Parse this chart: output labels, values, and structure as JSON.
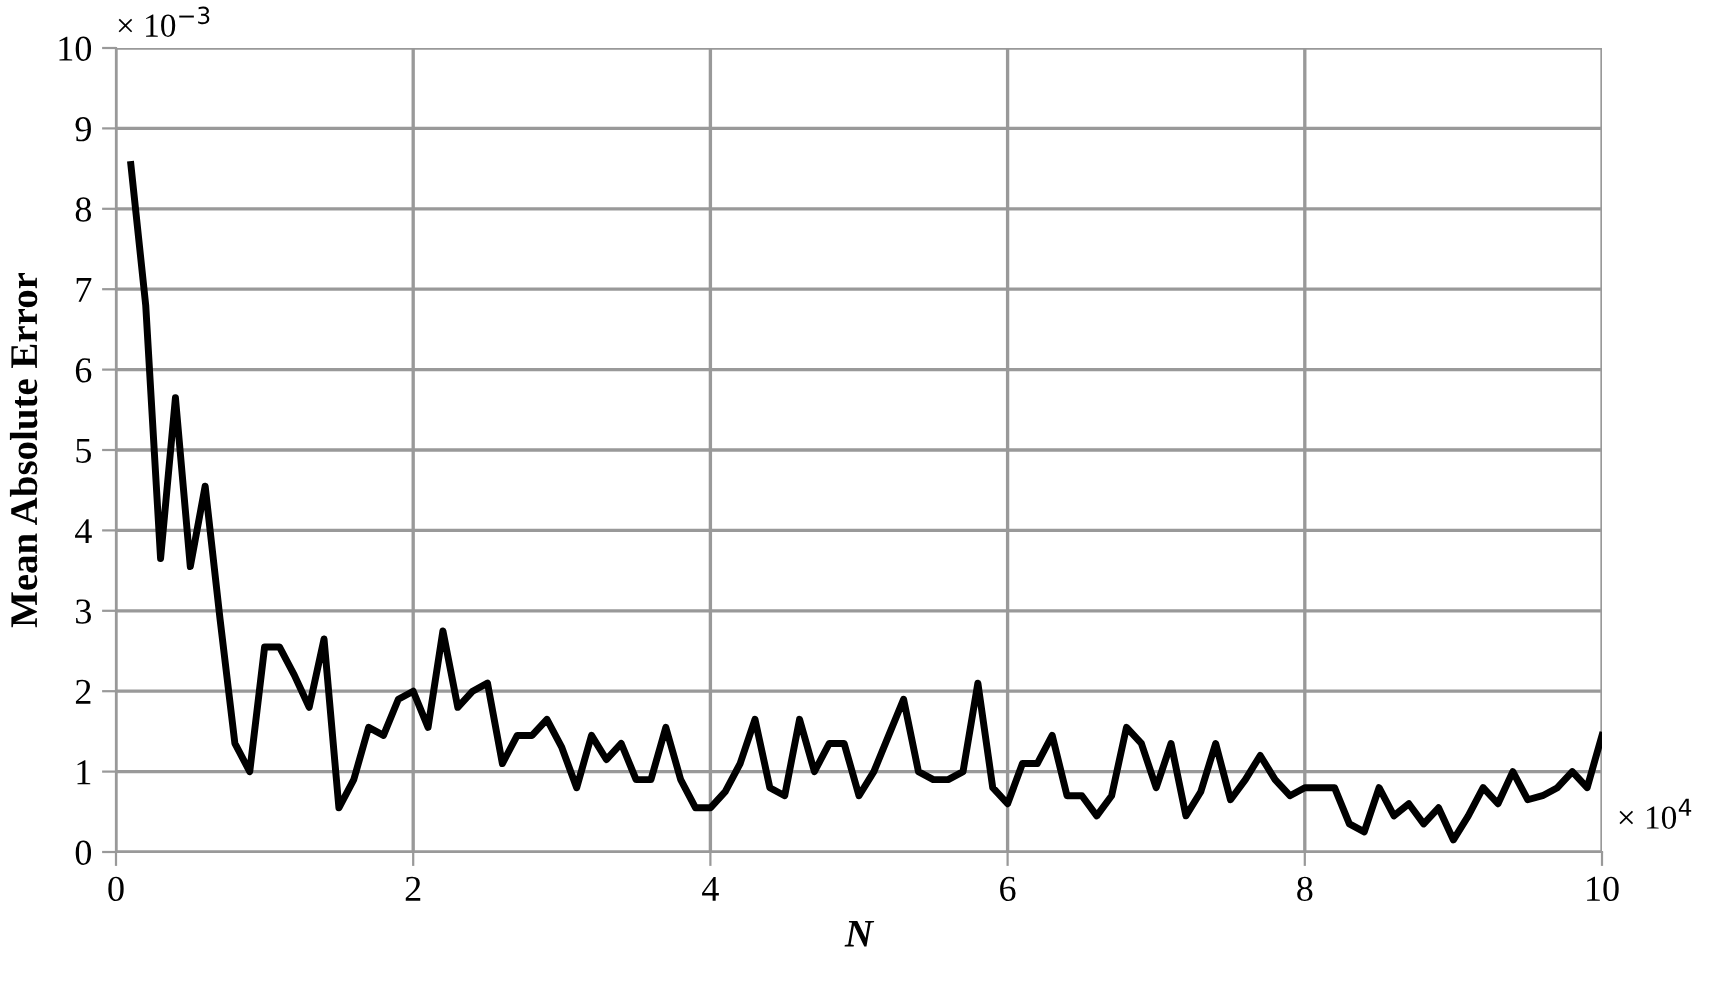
{
  "chart_data": {
    "type": "line",
    "xlabel": "N",
    "ylabel": "Mean Absolute Error",
    "annotations": [
      "× 10$^{−3}$",
      "× 10$^{4}$"
    ],
    "x": [
      0.1,
      0.2,
      0.3,
      0.4,
      0.5,
      0.6,
      0.7,
      0.8,
      0.9,
      1.0,
      1.1,
      1.2,
      1.3,
      1.4,
      1.5,
      1.6,
      1.7,
      1.8,
      1.9,
      2.0,
      2.1,
      2.2,
      2.3,
      2.4,
      2.5,
      2.6,
      2.7,
      2.8,
      2.9,
      3.0,
      3.1,
      3.2,
      3.3,
      3.4,
      3.5,
      3.6,
      3.7,
      3.8,
      3.9,
      4.0,
      4.1,
      4.2,
      4.3,
      4.4,
      4.5,
      4.6,
      4.7,
      4.8,
      4.9,
      5.0,
      5.1,
      5.2,
      5.3,
      5.4,
      5.5,
      5.6,
      5.7,
      5.8,
      5.9,
      6.0,
      6.1,
      6.2,
      6.3,
      6.4,
      6.5,
      6.6,
      6.7,
      6.8,
      6.9,
      7.0,
      7.1,
      7.2,
      7.3,
      7.4,
      7.5,
      7.6,
      7.7,
      7.8,
      7.9,
      8.0,
      8.1,
      8.2,
      8.3,
      8.4,
      8.5,
      8.6,
      8.7,
      8.8,
      8.9,
      9.0,
      9.1,
      9.2,
      9.3,
      9.4,
      9.5,
      9.6,
      9.7,
      9.8,
      9.9,
      10.0
    ],
    "series": [
      {
        "color": "#000000",
        "values": [
          8.55,
          6.8,
          3.65,
          5.65,
          3.55,
          4.55,
          2.9,
          1.35,
          1.0,
          2.55,
          2.55,
          2.2,
          1.8,
          2.65,
          0.55,
          0.9,
          1.55,
          1.45,
          1.9,
          2.0,
          1.55,
          2.75,
          1.8,
          2.0,
          2.1,
          1.1,
          1.45,
          1.45,
          1.65,
          1.3,
          0.8,
          1.45,
          1.15,
          1.35,
          0.9,
          0.9,
          1.55,
          0.9,
          0.55,
          0.55,
          0.75,
          1.1,
          1.65,
          0.8,
          0.7,
          1.65,
          1.0,
          1.35,
          1.35,
          0.7,
          1.0,
          1.45,
          1.9,
          1.0,
          0.9,
          0.9,
          1.0,
          2.1,
          0.8,
          0.6,
          1.1,
          1.1,
          1.45,
          0.7,
          0.7,
          0.45,
          0.7,
          1.55,
          1.35,
          0.8,
          1.35,
          0.45,
          0.75,
          1.35,
          0.65,
          0.9,
          1.2,
          0.9,
          0.7,
          0.8,
          0.8,
          0.8,
          0.35,
          0.25,
          0.8,
          0.45,
          0.6,
          0.35,
          0.55,
          0.15,
          0.45,
          0.8,
          0.6,
          1.0,
          0.65,
          0.7,
          0.8,
          1.0,
          0.8,
          1.45
        ]
      }
    ],
    "xlim": [
      0,
      10
    ],
    "xticks": [
      0,
      2,
      4,
      6,
      8,
      10
    ],
    "ylim": [
      0,
      10
    ],
    "yticks": [
      0,
      1,
      2,
      3,
      4,
      5,
      6,
      7,
      8,
      9,
      10
    ],
    "grid": true,
    "legend": false,
    "marker": "none",
    "line_style": "solid"
  }
}
